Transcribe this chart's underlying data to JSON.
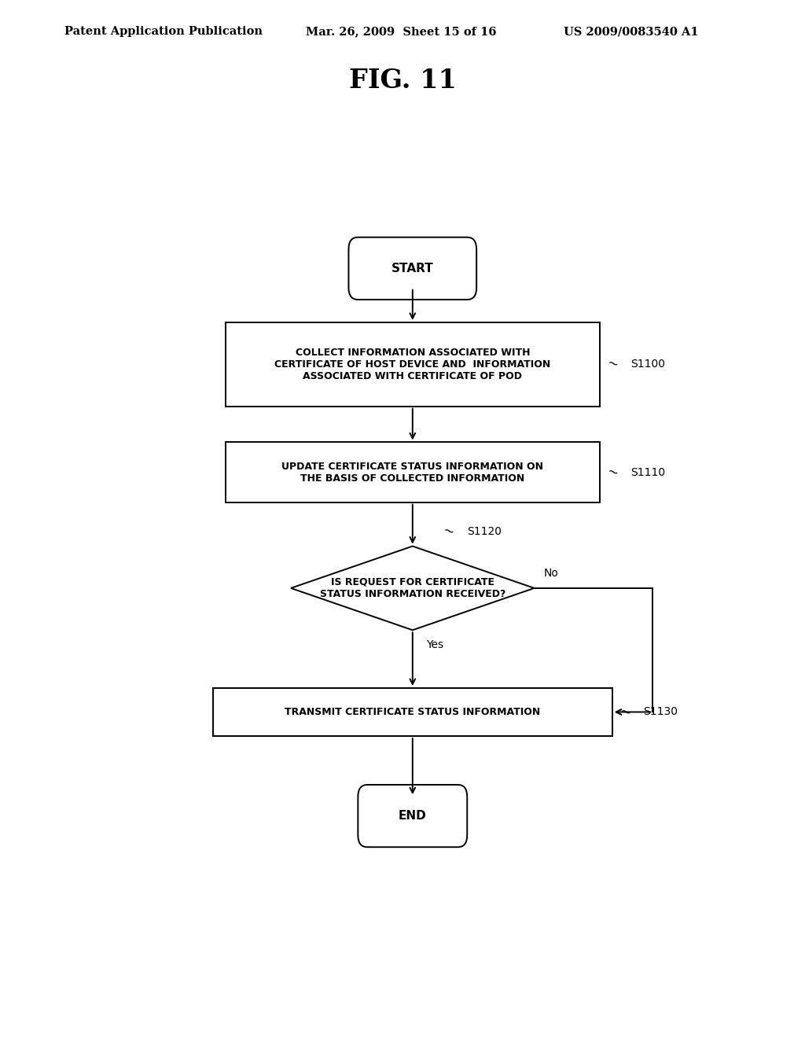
{
  "bg_color": "#ffffff",
  "header_left": "Patent Application Publication",
  "header_mid": "Mar. 26, 2009  Sheet 15 of 16",
  "header_right": "US 2009/0083540 A1",
  "fig_title": "FIG. 11",
  "start_label": "START",
  "end_label": "END",
  "node_s1100_label": "COLLECT INFORMATION ASSOCIATED WITH\nCERTIFICATE OF HOST DEVICE AND  INFORMATION\nASSOCIATED WITH CERTIFICATE OF POD",
  "node_s1110_label": "UPDATE CERTIFICATE STATUS INFORMATION ON\nTHE BASIS OF COLLECTED INFORMATION",
  "node_s1120_label": "IS REQUEST FOR CERTIFICATE\nSTATUS INFORMATION RECEIVED?",
  "node_s1130_label": "TRANSMIT CERTIFICATE STATUS INFORMATION",
  "tag_s1100": "S1100",
  "tag_s1110": "S1110",
  "tag_s1120": "S1120",
  "tag_s1130": "S1130",
  "yes_label": "Yes",
  "no_label": "No",
  "line_color": "#000000",
  "text_color": "#000000",
  "font_size_header": 10.5,
  "font_size_title": 24,
  "font_size_node": 9.0,
  "font_size_tag": 10,
  "font_size_terminal": 11
}
